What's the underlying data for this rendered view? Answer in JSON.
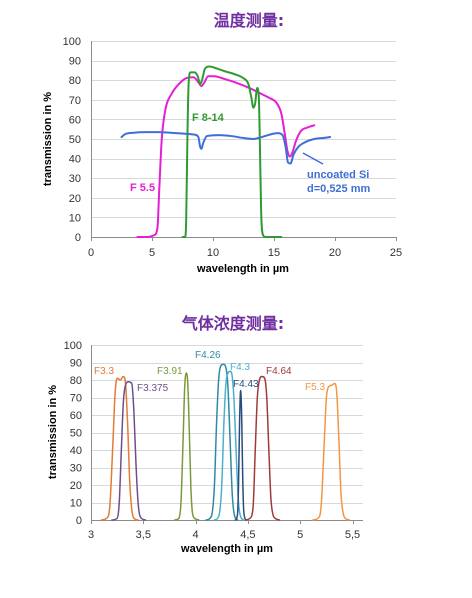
{
  "chart_data": [
    {
      "type": "line",
      "title": "温度测量:",
      "title_color": "#7030a0",
      "xlabel": "wavelength in µm",
      "ylabel": "transmission in %",
      "xlim": [
        0,
        25
      ],
      "ylim": [
        0,
        100
      ],
      "xticks": [
        0,
        5,
        10,
        15,
        20,
        25
      ],
      "xtick_labels": [
        "0",
        "5",
        "10",
        "15",
        "20",
        "25"
      ],
      "yticks": [
        0,
        10,
        20,
        30,
        40,
        50,
        60,
        70,
        80,
        90,
        100
      ],
      "ytick_labels": [
        "0",
        "10",
        "20",
        "30",
        "40",
        "50",
        "60",
        "70",
        "80",
        "90",
        "100"
      ],
      "grid": true,
      "series": [
        {
          "name": "F 5.5",
          "color": "#e41fd6",
          "x": [
            3.8,
            4.6,
            5.2,
            5.45,
            5.6,
            5.8,
            6.1,
            6.6,
            7.2,
            7.8,
            8.4,
            8.8,
            9.05,
            9.3,
            9.6,
            10.1,
            11,
            12,
            13,
            13.8,
            14.6,
            15.2,
            15.6,
            15.9,
            16.1,
            16.3,
            16.5,
            16.8,
            17.2,
            17.8,
            18.3
          ],
          "y": [
            0,
            0,
            1,
            5,
            25,
            50,
            65,
            73,
            78,
            81,
            81.5,
            79,
            77,
            79,
            82,
            82,
            80.5,
            78.5,
            76,
            73.5,
            71,
            68.5,
            63,
            52,
            44,
            41,
            43,
            49,
            54,
            56,
            57
          ]
        },
        {
          "name": "F 8-14",
          "color": "#2f9a32",
          "x": [
            7.5,
            7.72,
            7.8,
            7.9,
            8.0,
            8.15,
            8.5,
            8.75,
            8.95,
            9.1,
            9.35,
            9.7,
            10.3,
            11,
            11.8,
            12.5,
            12.9,
            13.15,
            13.3,
            13.45,
            13.62,
            13.75,
            13.85,
            13.95,
            14.1,
            14.3,
            15.6
          ],
          "y": [
            0,
            0,
            8,
            50,
            78,
            84,
            84,
            82,
            78,
            80,
            86,
            87,
            86,
            84.5,
            83,
            81,
            78,
            71,
            66,
            68,
            76,
            72,
            45,
            12,
            1,
            0,
            0
          ]
        },
        {
          "name": "uncoated Si",
          "label_line2": "d=0,525 mm",
          "color": "#3d6fd6",
          "x": [
            2.5,
            2.8,
            3.5,
            4.5,
            5.5,
            6.5,
            7.5,
            8.5,
            8.8,
            8.95,
            9.05,
            9.2,
            9.5,
            10.5,
            11.5,
            12.5,
            13.3,
            14,
            14.8,
            15.3,
            15.7,
            15.95,
            16.15,
            16.35,
            16.6,
            17,
            17.6,
            18.3,
            19,
            19.6
          ],
          "y": [
            51,
            52.5,
            53.2,
            53.5,
            53.5,
            53.2,
            52.8,
            52.2,
            51,
            46,
            45,
            48,
            51.5,
            52,
            51.5,
            50.5,
            50,
            51,
            52.5,
            53,
            52,
            46,
            38,
            37.5,
            42,
            46,
            48.5,
            50,
            50.5,
            51
          ]
        }
      ]
    },
    {
      "type": "line",
      "title": "气体浓度测量:",
      "title_color": "#7030a0",
      "xlabel": "wavelength in µm",
      "ylabel": "transmission in %",
      "xlim": [
        3,
        5.6
      ],
      "ylim": [
        0,
        100
      ],
      "xticks": [
        3,
        3.5,
        4,
        4.5,
        5,
        5.5
      ],
      "xtick_labels": [
        "3",
        "3,5",
        "4",
        "4,5",
        "5",
        "5,5"
      ],
      "yticks": [
        0,
        10,
        20,
        30,
        40,
        50,
        60,
        70,
        80,
        90,
        100
      ],
      "ytick_labels": [
        "0",
        "10",
        "20",
        "30",
        "40",
        "50",
        "60",
        "70",
        "80",
        "90",
        "100"
      ],
      "grid": true,
      "series": [
        {
          "name": "F3.3",
          "color": "#e27b35",
          "x": [
            3.1,
            3.15,
            3.18,
            3.21,
            3.23,
            3.25,
            3.28,
            3.31,
            3.33,
            3.35,
            3.37,
            3.39,
            3.41,
            3.45
          ],
          "y": [
            0,
            1,
            8,
            45,
            72,
            81,
            80,
            82,
            78,
            55,
            22,
            6,
            1,
            0
          ]
        },
        {
          "name": "F3.375",
          "color": "#6e4f8c",
          "x": [
            3.2,
            3.25,
            3.27,
            3.29,
            3.31,
            3.33,
            3.36,
            3.39,
            3.41,
            3.43,
            3.45,
            3.47,
            3.52
          ],
          "y": [
            0,
            1,
            10,
            40,
            68,
            77,
            79,
            78,
            62,
            32,
            10,
            2,
            0
          ]
        },
        {
          "name": "F3.91",
          "color": "#7a9a3a",
          "x": [
            3.8,
            3.84,
            3.86,
            3.88,
            3.895,
            3.91,
            3.925,
            3.94,
            3.955,
            3.97,
            3.99,
            4.03
          ],
          "y": [
            0,
            1,
            10,
            45,
            75,
            84,
            78,
            50,
            18,
            4,
            1,
            0
          ]
        },
        {
          "name": "F4.26",
          "color": "#2f8aa6",
          "x": [
            4.1,
            4.15,
            4.18,
            4.2,
            4.22,
            4.24,
            4.265,
            4.29,
            4.31,
            4.33,
            4.35,
            4.37,
            4.4
          ],
          "y": [
            0,
            2,
            20,
            55,
            80,
            88,
            89,
            87,
            75,
            45,
            15,
            3,
            0
          ]
        },
        {
          "name": "F4.3",
          "color": "#4bb0cc",
          "x": [
            4.18,
            4.22,
            4.25,
            4.27,
            4.29,
            4.31,
            4.33,
            4.35,
            4.37,
            4.39,
            4.41,
            4.43,
            4.46
          ],
          "y": [
            0,
            2,
            20,
            55,
            78,
            84,
            85,
            82,
            65,
            35,
            10,
            2,
            0
          ]
        },
        {
          "name": "F4.43",
          "color": "#2a4c80",
          "x": [
            4.38,
            4.4,
            4.41,
            4.42,
            4.43,
            4.44,
            4.45,
            4.46,
            4.48
          ],
          "y": [
            0,
            3,
            20,
            55,
            74,
            60,
            25,
            5,
            0
          ]
        },
        {
          "name": "F4.64",
          "color": "#a03a3a",
          "x": [
            4.48,
            4.52,
            4.55,
            4.57,
            4.59,
            4.61,
            4.635,
            4.66,
            4.68,
            4.7,
            4.72,
            4.74,
            4.76,
            4.8
          ],
          "y": [
            0,
            1,
            8,
            40,
            70,
            80,
            82,
            81,
            70,
            40,
            12,
            3,
            1,
            0
          ]
        },
        {
          "name": "F5.3",
          "color": "#f39642",
          "x": [
            5.12,
            5.17,
            5.2,
            5.23,
            5.25,
            5.27,
            5.3,
            5.33,
            5.35,
            5.37,
            5.39,
            5.41,
            5.43,
            5.47
          ],
          "y": [
            0,
            1,
            8,
            45,
            70,
            76,
            77,
            78,
            72,
            45,
            15,
            4,
            1,
            0
          ]
        }
      ]
    }
  ]
}
